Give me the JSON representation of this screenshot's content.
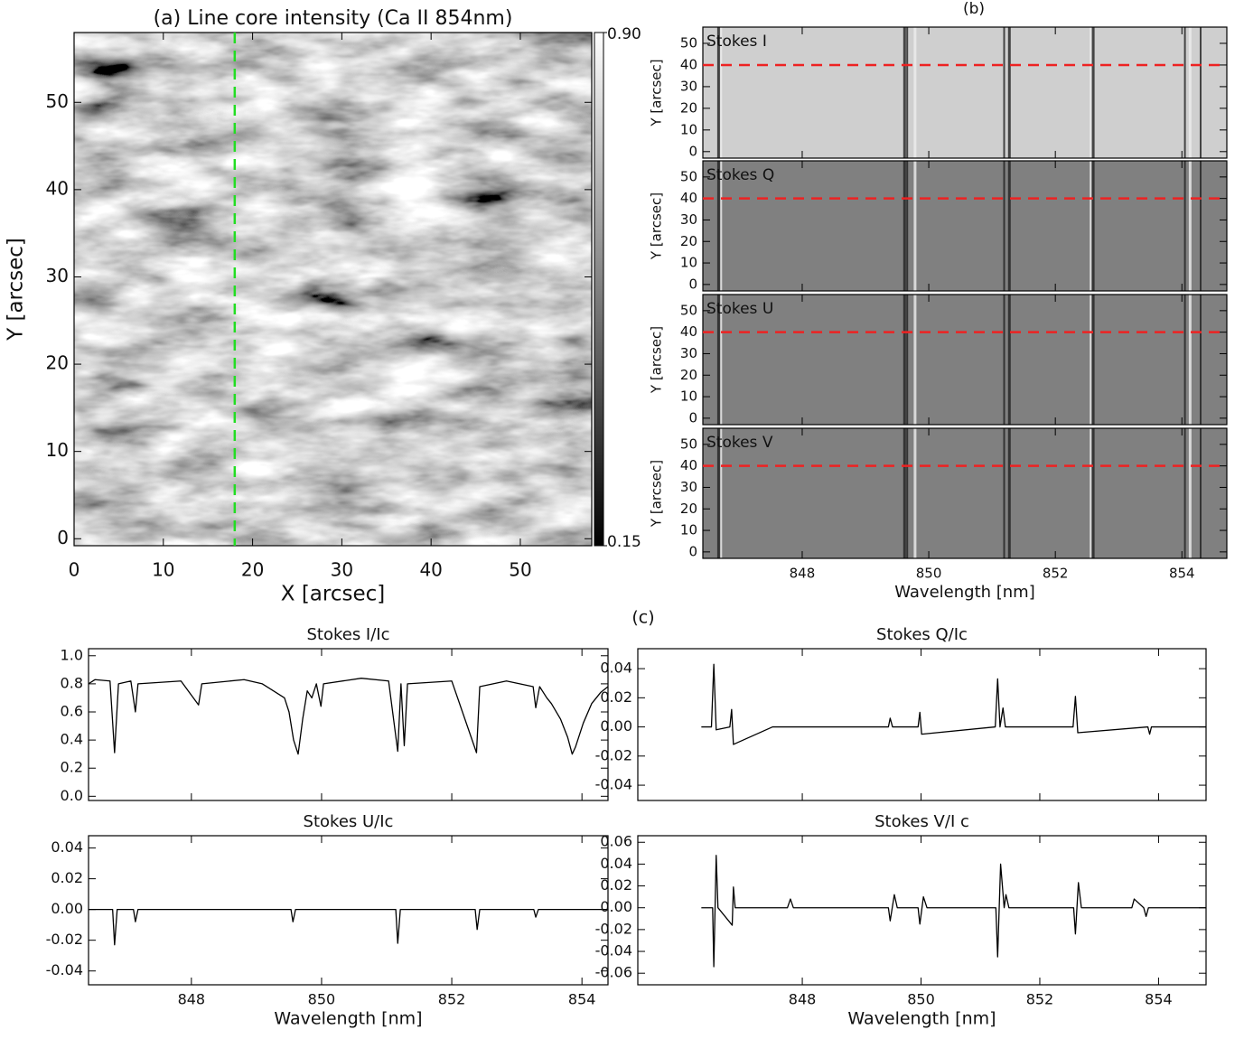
{
  "chart_data": [
    {
      "type": "image",
      "title": "(a) Line core intensity (Ca II 854nm)",
      "xlabel": "X [arcsec]",
      "ylabel": "Y [arcsec]",
      "xlim": [
        0,
        58
      ],
      "ylim": [
        -0.8,
        58
      ],
      "xticks": [
        0,
        10,
        20,
        30,
        40,
        50
      ],
      "yticks": [
        0,
        10,
        20,
        30,
        40,
        50
      ],
      "marker_x": 18,
      "marker_color": "#22dd22",
      "colorbar": {
        "range": [
          0.15,
          0.9
        ],
        "ticks": [
          {
            "value": 0.9,
            "label": "0.90"
          },
          {
            "value": 0.15,
            "label": "0.15"
          }
        ]
      }
    },
    {
      "type": "image",
      "title": "(b)",
      "label": "Stokes I",
      "label_color": "#1e3c3c",
      "ylabel": "Y [arcsec]",
      "xlim": [
        846.43,
        854.71
      ],
      "ylim": [
        -3,
        57.5
      ],
      "xticks": [
        848,
        850,
        852,
        854
      ],
      "yticks": [
        0,
        10,
        20,
        30,
        40,
        50
      ],
      "marker_y": 40,
      "marker_color": "#ee2222"
    },
    {
      "type": "image",
      "label": "Stokes Q",
      "label_color": "#22e0e8",
      "ylabel": "Y [arcsec]",
      "xlim": [
        846.43,
        854.71
      ],
      "ylim": [
        -3,
        57.5
      ],
      "xticks": [
        848,
        850,
        852,
        854
      ],
      "yticks": [
        0,
        10,
        20,
        30,
        40,
        50
      ],
      "marker_y": 40,
      "marker_color": "#ee2222"
    },
    {
      "type": "image",
      "label": "Stokes U",
      "label_color": "#22e0e8",
      "ylabel": "Y [arcsec]",
      "xlim": [
        846.43,
        854.71
      ],
      "ylim": [
        -3,
        57.5
      ],
      "xticks": [
        848,
        850,
        852,
        854
      ],
      "yticks": [
        0,
        10,
        20,
        30,
        40,
        50
      ],
      "marker_y": 40,
      "marker_color": "#ee2222"
    },
    {
      "type": "image",
      "label": "Stokes V",
      "label_color": "#22e0e8",
      "ylabel": "Y [arcsec]",
      "xlabel": "Wavelength [nm]",
      "xlim": [
        846.43,
        854.71
      ],
      "ylim": [
        -3,
        57.5
      ],
      "xticks": [
        848,
        850,
        852,
        854
      ],
      "yticks": [
        0,
        10,
        20,
        30,
        40,
        50
      ],
      "marker_y": 40,
      "marker_color": "#ee2222"
    },
    {
      "type": "line",
      "title": "Stokes I/Ic",
      "panel_label": "(c)",
      "color": "#000000",
      "xlim": [
        846.42,
        854.4
      ],
      "ylim": [
        -0.03,
        1.05
      ],
      "xticks": [
        848,
        850,
        852,
        854
      ],
      "yticks": [
        {
          "value": 0,
          "label": "0.0"
        },
        0.2,
        0.4,
        0.6,
        0.8,
        {
          "value": 1,
          "label": "1.0"
        }
      ],
      "x": [
        846.42,
        846.52,
        846.75,
        846.82,
        846.88,
        847.07,
        847.14,
        847.18,
        847.84,
        848.11,
        848.16,
        848.81,
        849.09,
        849.43,
        849.5,
        849.57,
        849.64,
        849.71,
        849.78,
        849.85,
        849.92,
        849.99,
        850.03,
        850.61,
        851.03,
        851.17,
        851.22,
        851.27,
        851.32,
        852.0,
        852.38,
        852.43,
        852.84,
        853.25,
        853.29,
        853.35,
        853.46,
        853.53,
        853.67,
        853.78,
        853.85,
        853.9,
        854.02,
        854.15,
        854.29,
        854.4
      ],
      "values": [
        0.8,
        0.83,
        0.82,
        0.31,
        0.8,
        0.82,
        0.6,
        0.8,
        0.82,
        0.65,
        0.8,
        0.83,
        0.8,
        0.7,
        0.6,
        0.4,
        0.3,
        0.55,
        0.75,
        0.7,
        0.8,
        0.64,
        0.8,
        0.84,
        0.82,
        0.32,
        0.8,
        0.36,
        0.8,
        0.82,
        0.31,
        0.78,
        0.82,
        0.78,
        0.63,
        0.78,
        0.7,
        0.66,
        0.55,
        0.42,
        0.3,
        0.35,
        0.52,
        0.66,
        0.74,
        0.78
      ]
    },
    {
      "type": "line",
      "title": "Stokes Q/Ic",
      "color": "#000000",
      "xlim": [
        845.23,
        854.8
      ],
      "ylim": [
        -0.0505,
        0.0537
      ],
      "xticks": [
        848,
        850,
        852,
        854
      ],
      "yticks": [
        -0.04,
        -0.02,
        {
          "value": 0,
          "label": "0.00"
        },
        0.02,
        0.04
      ],
      "x": [
        846.3,
        846.47,
        846.51,
        846.55,
        846.78,
        846.81,
        846.84,
        847.5,
        849.45,
        849.48,
        849.52,
        849.95,
        849.98,
        850.01,
        851.25,
        851.29,
        851.33,
        851.38,
        851.42,
        852.56,
        852.6,
        852.64,
        853.82,
        853.85,
        853.88,
        854.8
      ],
      "values": [
        0,
        0,
        0.043,
        -0.002,
        0,
        0.012,
        -0.012,
        0,
        0,
        0.006,
        0,
        0,
        0.01,
        -0.005,
        0,
        0.033,
        0,
        0.013,
        0,
        0,
        0.021,
        -0.004,
        0,
        -0.005,
        0,
        0
      ]
    },
    {
      "type": "line",
      "title": "Stokes U/Ic",
      "xlabel": "Wavelength [nm]",
      "color": "#000000",
      "xlim": [
        846.42,
        854.4
      ],
      "ylim": [
        -0.049,
        0.048
      ],
      "xticks": [
        848,
        850,
        852,
        854
      ],
      "yticks": [
        -0.04,
        -0.02,
        {
          "value": 0,
          "label": "0.00"
        },
        0.02,
        0.04
      ],
      "x": [
        846.42,
        846.79,
        846.82,
        846.86,
        847.11,
        847.14,
        847.18,
        849.53,
        849.56,
        849.6,
        851.14,
        851.17,
        851.21,
        852.36,
        852.39,
        852.43,
        853.26,
        853.29,
        853.33,
        854.4
      ],
      "values": [
        0,
        0,
        -0.023,
        0,
        0,
        -0.008,
        0,
        0,
        -0.008,
        0,
        0,
        -0.022,
        0,
        0,
        -0.013,
        0,
        0,
        -0.005,
        0,
        0
      ]
    },
    {
      "type": "line",
      "title": "Stokes V/I c",
      "xlabel": "Wavelength [nm]",
      "color": "#000000",
      "xlim": [
        845.23,
        854.8
      ],
      "ylim": [
        -0.0706,
        0.066
      ],
      "xticks": [
        848,
        850,
        852,
        854
      ],
      "yticks": [
        -0.06,
        -0.04,
        -0.02,
        {
          "value": 0,
          "label": "0.00"
        },
        0.02,
        0.04,
        0.06
      ],
      "x": [
        846.3,
        846.49,
        846.51,
        846.55,
        846.58,
        846.82,
        846.84,
        846.87,
        847.75,
        847.8,
        847.85,
        849.45,
        849.48,
        849.55,
        849.6,
        849.95,
        849.98,
        850.04,
        850.1,
        851.26,
        851.29,
        851.34,
        851.4,
        851.43,
        851.48,
        852.57,
        852.6,
        852.65,
        852.7,
        853.55,
        853.59,
        853.75,
        853.79,
        853.83,
        854.8
      ],
      "values": [
        0,
        0,
        -0.054,
        0.048,
        0,
        -0.016,
        0.019,
        0,
        0,
        0.008,
        0,
        0,
        -0.012,
        0.012,
        0,
        0,
        -0.015,
        0.01,
        0,
        0,
        -0.045,
        0.04,
        0,
        0.012,
        0,
        0,
        -0.024,
        0.023,
        0,
        0,
        0.008,
        0,
        -0.008,
        0,
        0
      ]
    }
  ]
}
